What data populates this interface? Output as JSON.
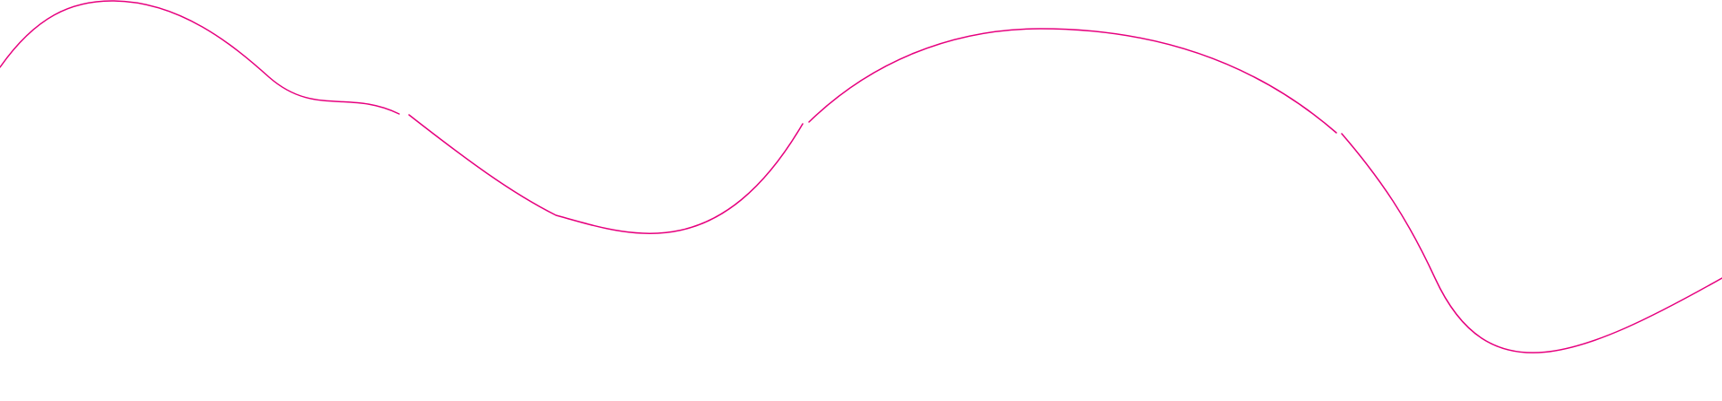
{
  "decoration": {
    "type": "wave-line",
    "stroke_color": "#e6007e",
    "background_color": "#ffffff"
  }
}
